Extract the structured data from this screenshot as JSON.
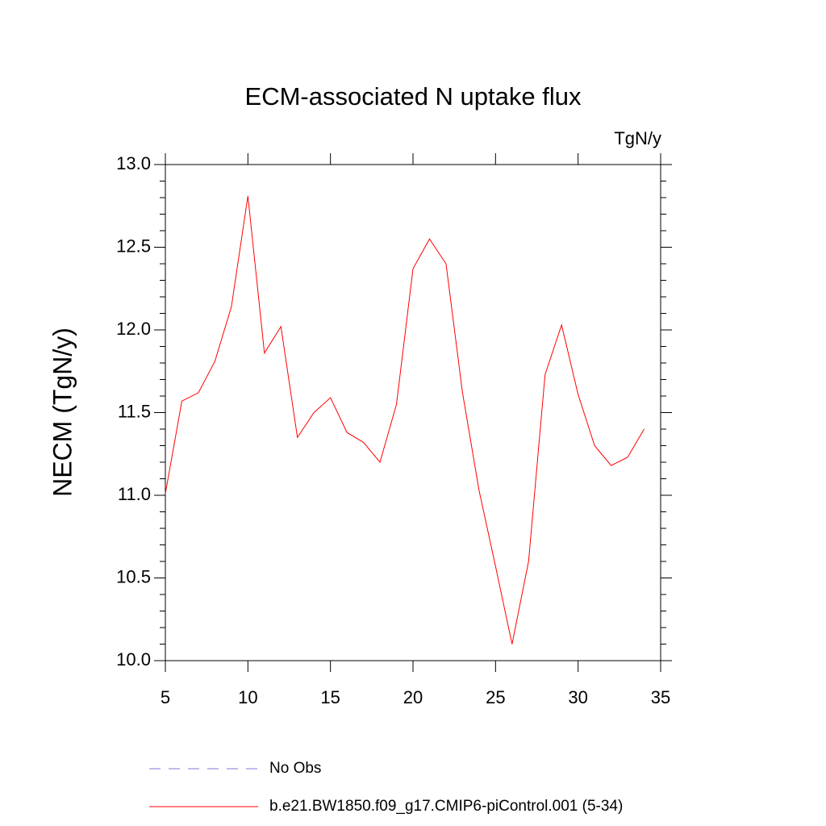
{
  "chart_data": {
    "type": "line",
    "title": "ECM-associated N uptake flux",
    "units_label": "TgN/y",
    "ylabel": "NECM  (TgN/y)",
    "x": [
      5,
      6,
      7,
      8,
      9,
      10,
      11,
      12,
      13,
      14,
      15,
      16,
      17,
      18,
      19,
      20,
      21,
      22,
      23,
      24,
      25,
      26,
      27,
      28,
      29,
      30,
      31,
      32,
      33,
      34
    ],
    "series": [
      {
        "name": "No Obs",
        "color": "#7b7bd6",
        "dashed": true,
        "values": [
          null,
          null,
          null,
          null,
          null,
          null,
          null,
          null,
          null,
          null,
          null,
          null,
          null,
          null,
          null,
          null,
          null,
          null,
          null,
          null,
          null,
          null,
          null,
          null,
          null,
          null,
          null,
          null,
          null,
          null
        ]
      },
      {
        "name": "b.e21.BW1850.f09_g17.CMIP6-piControl.001 (5-34)",
        "color": "#ff0000",
        "dashed": false,
        "values": [
          11.01,
          11.57,
          11.62,
          11.81,
          12.14,
          12.81,
          11.86,
          12.02,
          11.35,
          11.5,
          11.59,
          11.38,
          11.32,
          11.2,
          11.55,
          12.37,
          12.55,
          12.4,
          11.62,
          11.03,
          10.57,
          10.1,
          10.6,
          11.73,
          12.03,
          11.61,
          11.3,
          11.18,
          11.23,
          11.4
        ]
      }
    ],
    "xlim": [
      5,
      35
    ],
    "xticks": [
      5,
      10,
      15,
      20,
      25,
      30,
      35
    ],
    "ylim": [
      10,
      13
    ],
    "yticks": [
      {
        "value": 10,
        "label": "10.0"
      },
      {
        "value": 10.5,
        "label": "10.5"
      },
      {
        "value": 11,
        "label": "11.0"
      },
      {
        "value": 11.5,
        "label": "11.5"
      },
      {
        "value": 12,
        "label": "12.0"
      },
      {
        "value": 12.5,
        "label": "12.5"
      },
      {
        "value": 13,
        "label": "13.0"
      }
    ],
    "yminorticks": [
      10.1,
      10.2,
      10.3,
      10.4,
      10.6,
      10.7,
      10.8,
      10.9,
      11.1,
      11.2,
      11.3,
      11.4,
      11.6,
      11.7,
      11.8,
      11.9,
      12.1,
      12.2,
      12.3,
      12.4,
      12.6,
      12.7,
      12.8,
      12.9
    ]
  }
}
